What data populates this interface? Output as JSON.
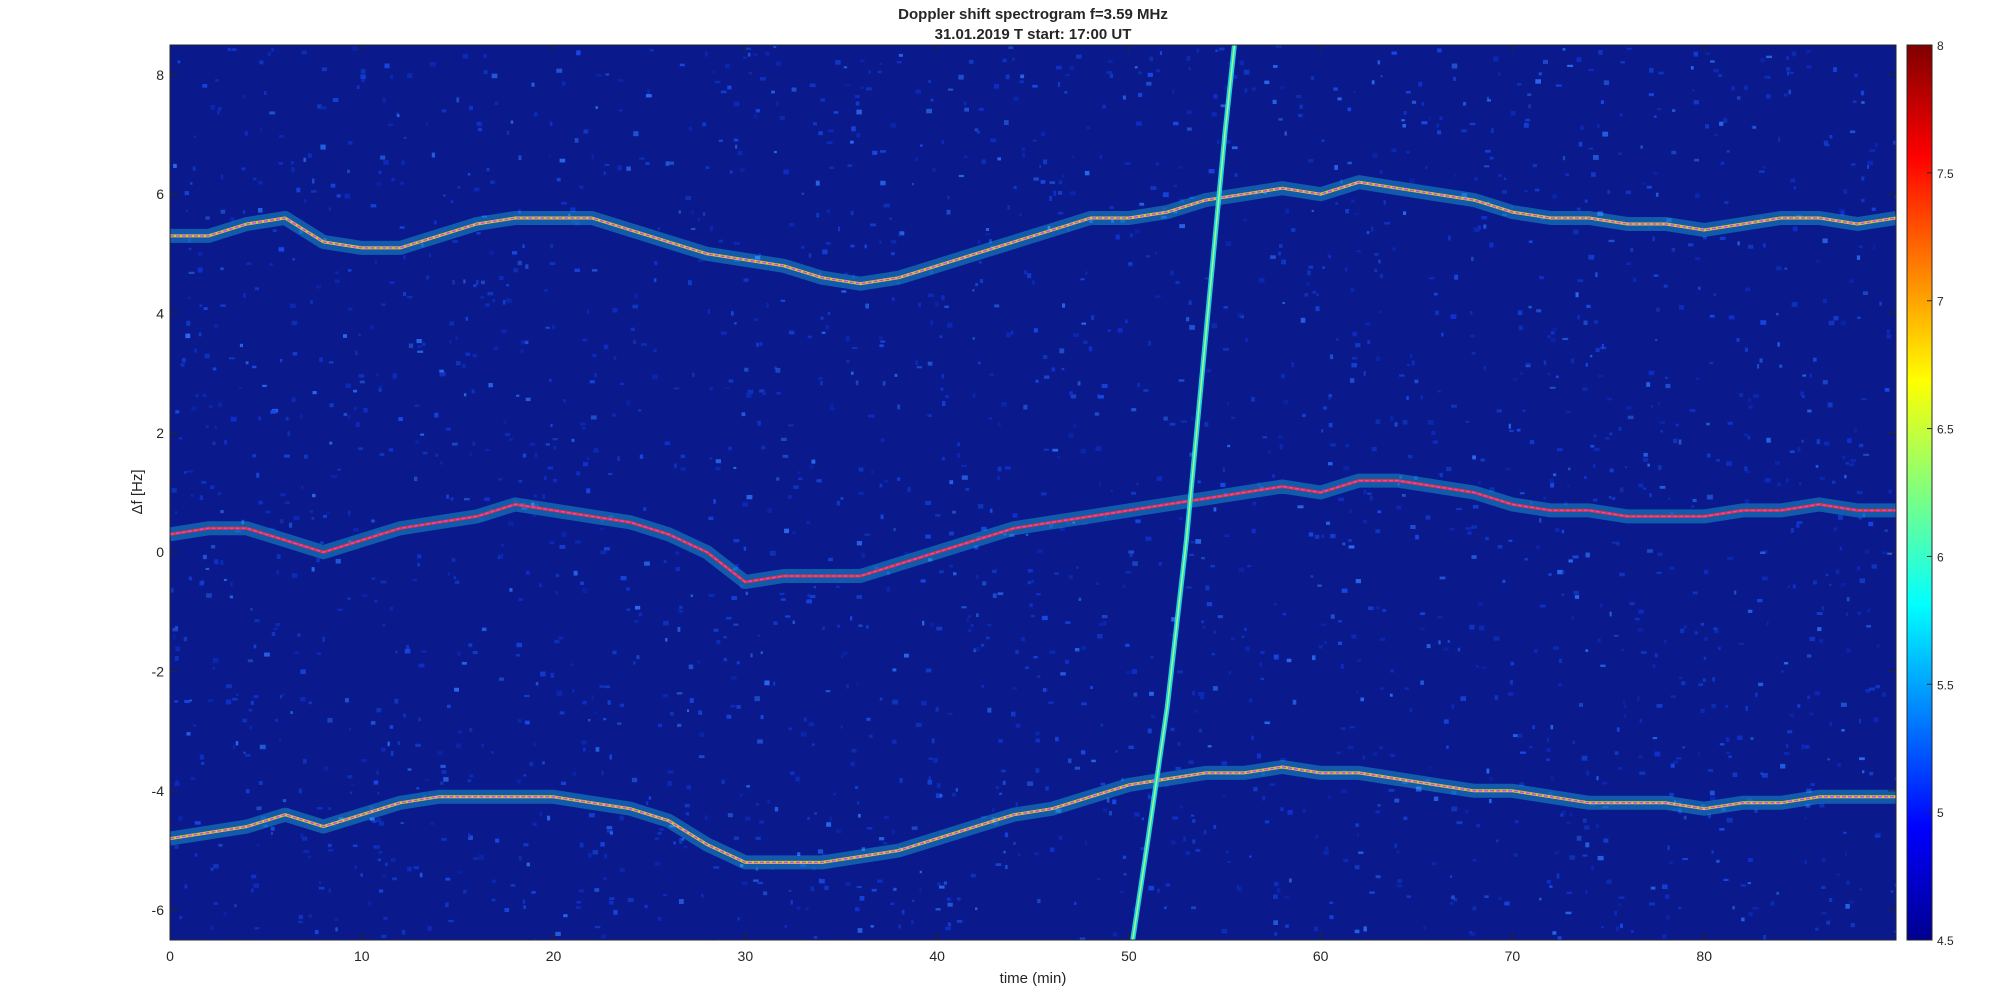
{
  "chart_data": {
    "type": "heatmap",
    "title": "Doppler shift spectrogram f=3.59 MHz",
    "subtitle": "31.01.2019   T start: 17:00 UT",
    "xlabel": "time (min)",
    "ylabel": "Δf [Hz]",
    "xlim": [
      0,
      90
    ],
    "ylim": [
      -6.5,
      8.5
    ],
    "x_ticks": [
      "0",
      "10",
      "20",
      "30",
      "40",
      "50",
      "60",
      "70",
      "80"
    ],
    "y_ticks": [
      "8",
      "6",
      "4",
      "2",
      "0",
      "-2",
      "-4",
      "-6"
    ],
    "colorbar": {
      "range": [
        4.5,
        8
      ],
      "ticks": [
        "8",
        "7.5",
        "7",
        "6.5",
        "6",
        "5.5",
        "5",
        "4.5"
      ],
      "colormap": "jet"
    },
    "background_color": "#0a1a8c",
    "traces": [
      {
        "x": [
          0,
          2,
          4,
          6,
          8,
          10,
          12,
          14,
          16,
          18,
          20,
          22,
          24,
          26,
          28,
          30,
          32,
          34,
          36,
          38,
          40,
          42,
          44,
          46,
          48,
          50,
          52,
          54,
          56,
          58,
          60,
          62,
          64,
          66,
          68,
          70,
          72,
          74,
          76,
          78,
          80,
          82,
          84,
          86,
          88,
          90
        ],
        "y": [
          5.3,
          5.3,
          5.5,
          5.6,
          5.2,
          5.1,
          5.1,
          5.3,
          5.5,
          5.6,
          5.6,
          5.6,
          5.4,
          5.2,
          5.0,
          4.9,
          4.8,
          4.6,
          4.5,
          4.6,
          4.8,
          5.0,
          5.2,
          5.4,
          5.6,
          5.6,
          5.7,
          5.9,
          6.0,
          6.1,
          6.0,
          6.2,
          6.1,
          6.0,
          5.9,
          5.7,
          5.6,
          5.6,
          5.5,
          5.5,
          5.4,
          5.5,
          5.6,
          5.6,
          5.5,
          5.6
        ]
      },
      {
        "x": [
          0,
          2,
          4,
          6,
          8,
          10,
          12,
          14,
          16,
          18,
          20,
          22,
          24,
          26,
          28,
          30,
          32,
          34,
          36,
          38,
          40,
          42,
          44,
          46,
          48,
          50,
          52,
          54,
          56,
          58,
          60,
          62,
          64,
          66,
          68,
          70,
          72,
          74,
          76,
          78,
          80,
          82,
          84,
          86,
          88,
          90
        ],
        "y": [
          0.3,
          0.4,
          0.4,
          0.2,
          0.0,
          0.2,
          0.4,
          0.5,
          0.6,
          0.8,
          0.7,
          0.6,
          0.5,
          0.3,
          0.0,
          -0.5,
          -0.4,
          -0.4,
          -0.4,
          -0.2,
          0.0,
          0.2,
          0.4,
          0.5,
          0.6,
          0.7,
          0.8,
          0.9,
          1.0,
          1.1,
          1.0,
          1.2,
          1.2,
          1.1,
          1.0,
          0.8,
          0.7,
          0.7,
          0.6,
          0.6,
          0.6,
          0.7,
          0.7,
          0.8,
          0.7,
          0.7
        ]
      },
      {
        "x": [
          0,
          2,
          4,
          6,
          8,
          10,
          12,
          14,
          16,
          18,
          20,
          22,
          24,
          26,
          28,
          30,
          32,
          34,
          36,
          38,
          40,
          42,
          44,
          46,
          48,
          50,
          52,
          54,
          56,
          58,
          60,
          62,
          64,
          66,
          68,
          70,
          72,
          74,
          76,
          78,
          80,
          82,
          84,
          86,
          88,
          90
        ],
        "y": [
          -4.8,
          -4.7,
          -4.6,
          -4.4,
          -4.6,
          -4.4,
          -4.2,
          -4.1,
          -4.1,
          -4.1,
          -4.1,
          -4.2,
          -4.3,
          -4.5,
          -4.9,
          -5.2,
          -5.2,
          -5.2,
          -5.1,
          -5.0,
          -4.8,
          -4.6,
          -4.4,
          -4.3,
          -4.1,
          -3.9,
          -3.8,
          -3.7,
          -3.7,
          -3.6,
          -3.7,
          -3.7,
          -3.8,
          -3.9,
          -4.0,
          -4.0,
          -4.1,
          -4.2,
          -4.2,
          -4.2,
          -4.3,
          -4.2,
          -4.2,
          -4.1,
          -4.1,
          -4.1
        ]
      },
      {
        "x": [
          50.2,
          51.0,
          52.0,
          53.0,
          54.0,
          55.0,
          55.5
        ],
        "y": [
          -6.5,
          -4.8,
          -2.6,
          0.2,
          3.6,
          7.0,
          8.5
        ]
      }
    ]
  }
}
